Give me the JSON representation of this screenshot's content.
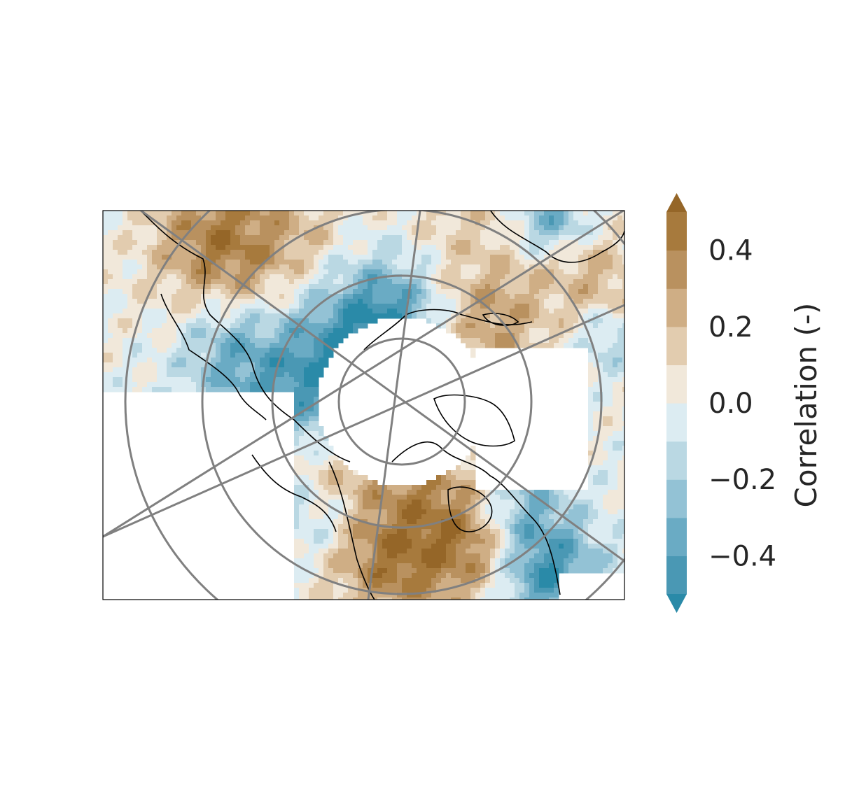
{
  "chart_data": {
    "type": "heatmap",
    "projection": "north-polar-stereographic",
    "colorbar": {
      "label": "Correlation (-)",
      "ticks": [
        0.4,
        0.2,
        0.0,
        -0.2,
        -0.4
      ],
      "tick_labels": [
        "0.4",
        "0.2",
        "0.0",
        "−0.2",
        "−0.4"
      ],
      "levels": [
        -0.5,
        -0.4,
        -0.3,
        -0.2,
        -0.1,
        0.0,
        0.1,
        0.2,
        0.3,
        0.4,
        0.5
      ],
      "extend": "both",
      "colors": [
        "#2a8aa8",
        "#4a98b4",
        "#6aabc4",
        "#93c2d5",
        "#bad8e3",
        "#dcecf2",
        "#f1e8da",
        "#e2ccaf",
        "#cfae85",
        "#b9915f",
        "#a77a3d",
        "#956628"
      ]
    },
    "gridlines": "on",
    "coastlines": "on"
  }
}
